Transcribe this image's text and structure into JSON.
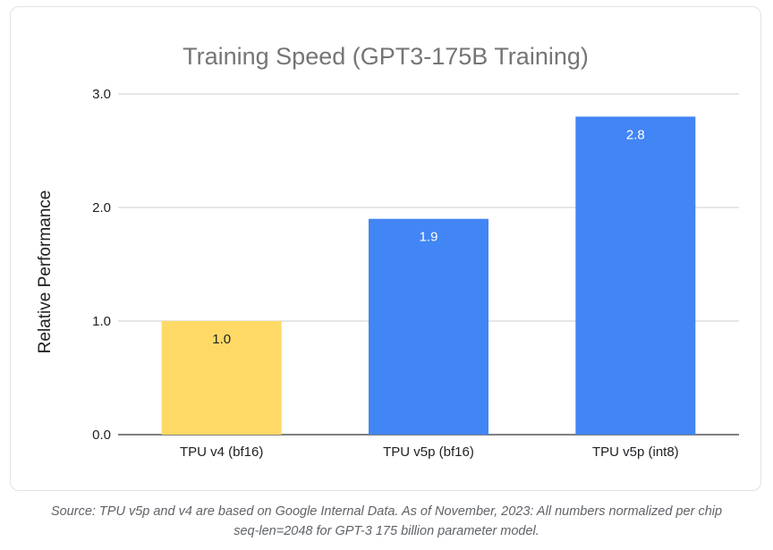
{
  "chart_data": {
    "type": "bar",
    "title": "Training Speed (GPT3-175B Training)",
    "xlabel": "",
    "ylabel": "Relative Performance",
    "categories": [
      "TPU v4 (bf16)",
      "TPU v5p (bf16)",
      "TPU v5p (int8)"
    ],
    "values": [
      1.0,
      1.9,
      2.8
    ],
    "value_labels": [
      "1.0",
      "1.9",
      "2.8"
    ],
    "bar_colors": [
      "#FFD966",
      "#4285F4",
      "#4285F4"
    ],
    "value_label_colors": [
      "#202124",
      "#ffffff",
      "#ffffff"
    ],
    "ylim": [
      0,
      3
    ],
    "yticks": [
      0,
      1,
      2,
      3
    ],
    "ytick_labels": [
      "0.0",
      "1.0",
      "2.0",
      "3.0"
    ],
    "grid": true,
    "legend": "none"
  },
  "caption": {
    "line1": "Source: TPU v5p and v4 are based on Google Internal Data. As of November, 2023: All numbers normalized per chip",
    "line2": "seq-len=2048 for GPT-3 175 billion parameter model."
  }
}
